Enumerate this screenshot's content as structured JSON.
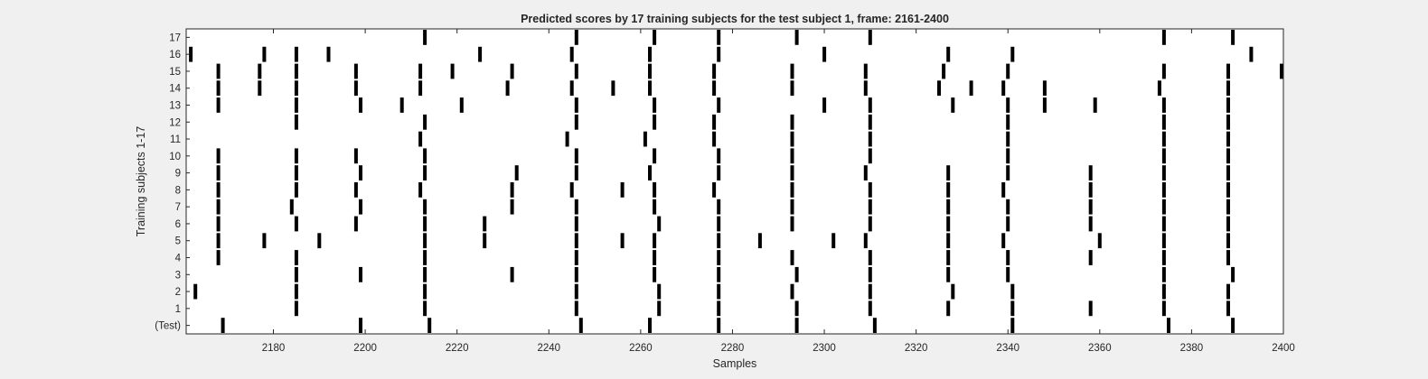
{
  "chart_data": {
    "type": "raster",
    "title": "Predicted scores by 17 training subjects for the test subject 1, frame: 2161-2400",
    "xlabel": "Samples",
    "ylabel": "Training subjects 1-17",
    "xlim": [
      2161,
      2400
    ],
    "xticks": [
      2180,
      2200,
      2220,
      2240,
      2260,
      2280,
      2300,
      2320,
      2340,
      2360,
      2380,
      2400
    ],
    "row_labels": [
      "(Test)",
      "1",
      "2",
      "3",
      "4",
      "5",
      "6",
      "7",
      "8",
      "9",
      "10",
      "11",
      "12",
      "13",
      "14",
      "15",
      "16",
      "17"
    ],
    "background_color": "#f0f0f0",
    "axes_color": "#ffffff",
    "mark_color": "#000000",
    "rows": [
      {
        "label": "(Test)",
        "events": [
          2169,
          2199,
          2214,
          2247,
          2262,
          2277,
          2294,
          2311,
          2341,
          2375,
          2389
        ]
      },
      {
        "label": "1",
        "events": [
          2185,
          2213,
          2246,
          2264,
          2277,
          2294,
          2310,
          2327,
          2341,
          2358,
          2374,
          2388
        ]
      },
      {
        "label": "2",
        "events": [
          2163,
          2185,
          2213,
          2246,
          2264,
          2277,
          2293,
          2310,
          2328,
          2341,
          2374,
          2388
        ]
      },
      {
        "label": "3",
        "events": [
          2185,
          2199,
          2213,
          2232,
          2246,
          2263,
          2277,
          2294,
          2310,
          2327,
          2340,
          2374,
          2389
        ]
      },
      {
        "label": "4",
        "events": [
          2168,
          2185,
          2213,
          2246,
          2263,
          2277,
          2293,
          2310,
          2327,
          2340,
          2358,
          2374,
          2388
        ]
      },
      {
        "label": "5",
        "events": [
          2168,
          2178,
          2190,
          2213,
          2226,
          2246,
          2256,
          2263,
          2277,
          2286,
          2302,
          2309,
          2327,
          2339,
          2360,
          2374,
          2388
        ]
      },
      {
        "label": "6",
        "events": [
          2168,
          2185,
          2198,
          2213,
          2226,
          2246,
          2264,
          2277,
          2293,
          2310,
          2327,
          2340,
          2358,
          2374,
          2388
        ]
      },
      {
        "label": "7",
        "events": [
          2168,
          2184,
          2199,
          2213,
          2232,
          2246,
          2263,
          2277,
          2293,
          2310,
          2327,
          2340,
          2358,
          2374,
          2388
        ]
      },
      {
        "label": "8",
        "events": [
          2168,
          2185,
          2198,
          2212,
          2232,
          2245,
          2256,
          2263,
          2276,
          2293,
          2310,
          2327,
          2339,
          2358,
          2374,
          2388
        ]
      },
      {
        "label": "9",
        "events": [
          2168,
          2185,
          2199,
          2213,
          2233,
          2246,
          2262,
          2277,
          2293,
          2309,
          2327,
          2340,
          2358,
          2374,
          2388
        ]
      },
      {
        "label": "10",
        "events": [
          2168,
          2185,
          2198,
          2213,
          2246,
          2263,
          2277,
          2293,
          2310,
          2340,
          2374,
          2388
        ]
      },
      {
        "label": "11",
        "events": [
          2212,
          2244,
          2261,
          2276,
          2293,
          2310,
          2340,
          2374,
          2388
        ]
      },
      {
        "label": "12",
        "events": [
          2185,
          2213,
          2246,
          2263,
          2276,
          2293,
          2310,
          2340,
          2374,
          2388
        ]
      },
      {
        "label": "13",
        "events": [
          2168,
          2185,
          2199,
          2208,
          2221,
          2246,
          2263,
          2277,
          2300,
          2310,
          2328,
          2340,
          2348,
          2359,
          2374,
          2388
        ]
      },
      {
        "label": "14",
        "events": [
          2168,
          2177,
          2185,
          2198,
          2212,
          2231,
          2245,
          2254,
          2262,
          2276,
          2293,
          2309,
          2325,
          2332,
          2339,
          2348,
          2373,
          2388
        ]
      },
      {
        "label": "15",
        "events": [
          2168,
          2177,
          2185,
          2198,
          2212,
          2219,
          2232,
          2246,
          2262,
          2276,
          2293,
          2309,
          2326,
          2340,
          2374,
          2388,
          2400
        ]
      },
      {
        "label": "16",
        "events": [
          2162,
          2178,
          2185,
          2192,
          2225,
          2245,
          2262,
          2277,
          2300,
          2327,
          2341,
          2393
        ]
      },
      {
        "label": "17",
        "events": [
          2213,
          2246,
          2263,
          2277,
          2294,
          2310,
          2374,
          2389
        ]
      }
    ]
  }
}
